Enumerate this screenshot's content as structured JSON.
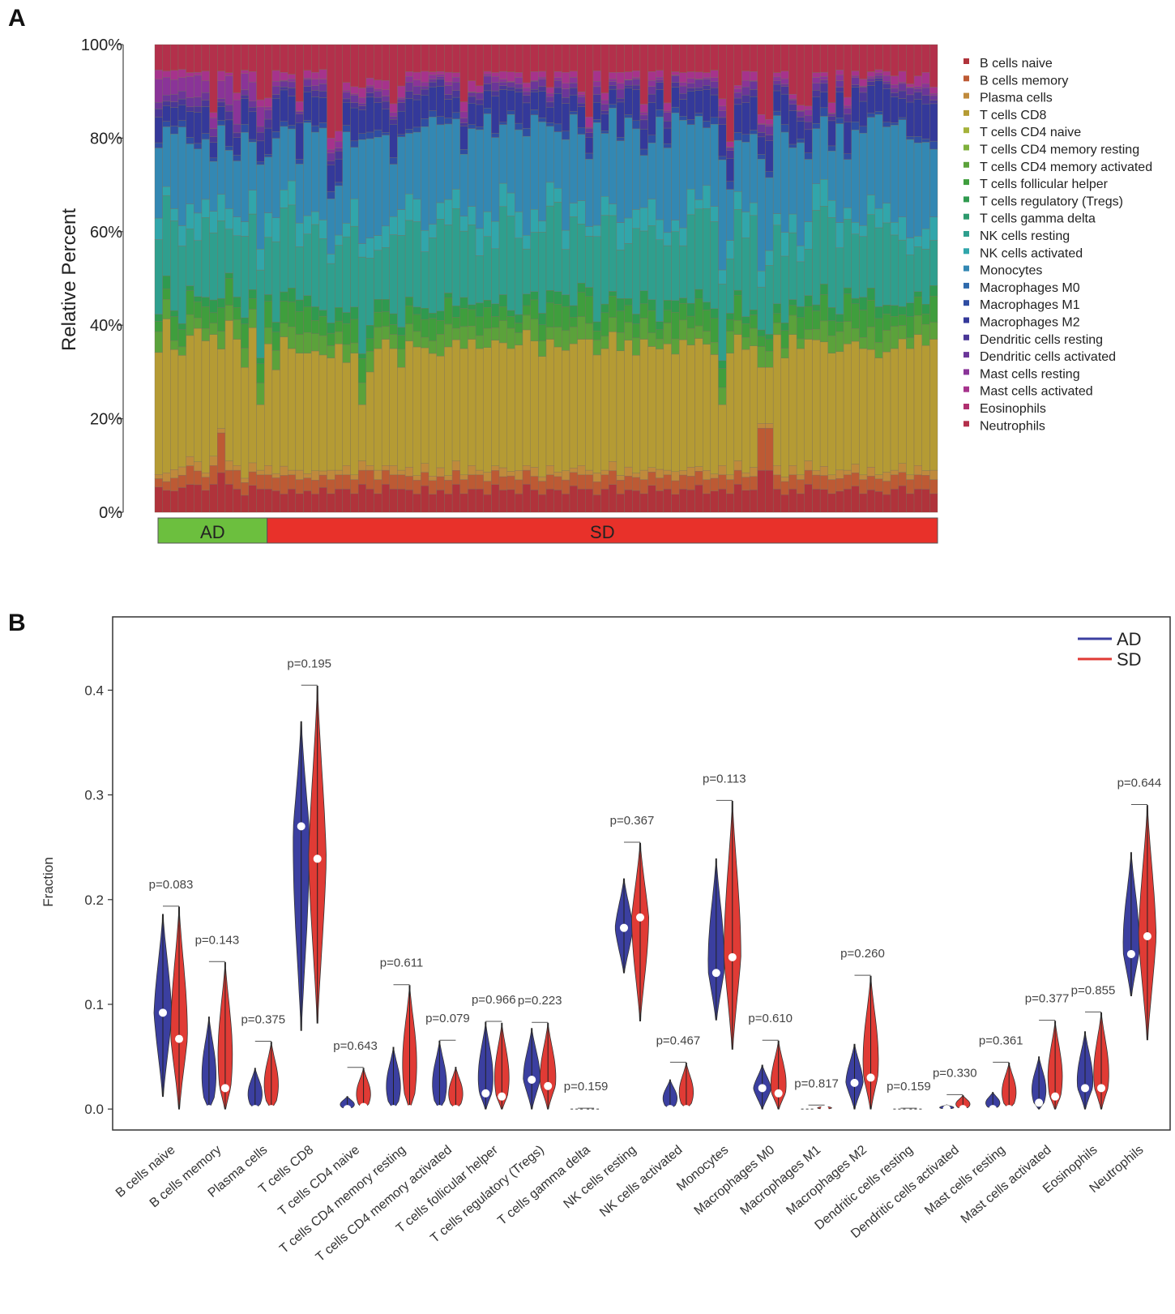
{
  "chart_data": [
    {
      "panel_label": "A",
      "type": "bar",
      "stacked": true,
      "ylabel": "Relative Percent",
      "ytick_labels": [
        "0%",
        "20%",
        "40%",
        "60%",
        "80%",
        "100%"
      ],
      "ylim": [
        0,
        100
      ],
      "n_samples": 100,
      "groups": [
        {
          "name": "AD",
          "count": 14,
          "color": "#6cbf3e"
        },
        {
          "name": "SD",
          "count": 86,
          "color": "#e8312a"
        }
      ],
      "legend": [
        {
          "name": "B cells naive",
          "color": "#b0333b"
        },
        {
          "name": "B cells memory",
          "color": "#bd5a34"
        },
        {
          "name": "Plasma cells",
          "color": "#c08a3c"
        },
        {
          "name": "T cells CD8",
          "color": "#b59b34"
        },
        {
          "name": "T cells CD4 naive",
          "color": "#a5b23a"
        },
        {
          "name": "T cells CD4 memory resting",
          "color": "#7fb03c"
        },
        {
          "name": "T cells CD4 memory activated",
          "color": "#5ba23b"
        },
        {
          "name": "T cells follicular helper",
          "color": "#3f9e3d"
        },
        {
          "name": "T cells regulatory (Tregs)",
          "color": "#2f9a4f"
        },
        {
          "name": "T cells gamma delta",
          "color": "#2e9a6d"
        },
        {
          "name": "NK cells resting",
          "color": "#2f9f8e"
        },
        {
          "name": "NK cells activated",
          "color": "#31a6ab"
        },
        {
          "name": "Monocytes",
          "color": "#3388b3"
        },
        {
          "name": "Macrophages M0",
          "color": "#2f6aac"
        },
        {
          "name": "Macrophages M1",
          "color": "#2f4da2"
        },
        {
          "name": "Macrophages M2",
          "color": "#34399a"
        },
        {
          "name": "Dendritic cells resting",
          "color": "#4a3797"
        },
        {
          "name": "Dendritic cells activated",
          "color": "#6b3699"
        },
        {
          "name": "Mast cells resting",
          "color": "#8a3498"
        },
        {
          "name": "Mast cells activated",
          "color": "#a6338c"
        },
        {
          "name": "Eosinophils",
          "color": "#b0306f"
        },
        {
          "name": "Neutrophils",
          "color": "#b3304b"
        }
      ],
      "series_summary": [
        {
          "name": "B cells naive",
          "values": [
            6,
            5,
            5,
            6,
            6,
            6,
            5,
            6,
            9,
            6,
            5,
            4,
            6,
            5,
            5,
            5,
            4,
            5,
            4,
            5,
            4,
            6,
            4,
            5,
            5,
            4,
            6,
            5,
            4,
            6,
            5,
            5,
            5,
            4,
            6,
            4,
            5,
            4,
            6,
            4,
            5,
            5,
            4,
            6,
            5,
            5,
            4,
            6,
            5,
            4,
            5,
            5,
            4,
            6,
            5,
            5,
            4,
            5,
            6,
            4,
            5,
            5,
            4,
            6,
            5,
            5,
            4,
            5,
            5,
            6,
            4,
            5,
            5,
            4,
            6,
            5,
            5,
            9,
            9,
            5,
            4,
            5,
            4,
            6,
            5,
            5,
            4,
            5,
            5,
            6,
            4,
            5,
            5,
            4,
            5,
            6,
            4,
            5,
            5,
            4
          ]
        },
        {
          "name": "B cells memory",
          "values": [
            2,
            2,
            3,
            3,
            4,
            3,
            3,
            4,
            9,
            3,
            4,
            3,
            3,
            3,
            3,
            3,
            4,
            3,
            3,
            3,
            3,
            3,
            3,
            3,
            3,
            3,
            3,
            4,
            3,
            3,
            3,
            3,
            3,
            3,
            3,
            3,
            3,
            3,
            3,
            3,
            3,
            3,
            3,
            3,
            3,
            3,
            3,
            3,
            3,
            3,
            3,
            3,
            3,
            3,
            3,
            3,
            3,
            3,
            3,
            3,
            3,
            3,
            3,
            3,
            3,
            3,
            3,
            3,
            3,
            3,
            3,
            3,
            3,
            3,
            3,
            3,
            3,
            9,
            9,
            3,
            3,
            3,
            3,
            3,
            3,
            3,
            3,
            3,
            3,
            3,
            3,
            3,
            3,
            3,
            3,
            3,
            3,
            3,
            3,
            3
          ]
        },
        {
          "name": "Plasma cells",
          "values": [
            1,
            2,
            2,
            2,
            2,
            2,
            1,
            2,
            1,
            2,
            1,
            1,
            2,
            1,
            2,
            1,
            2,
            1,
            2,
            1,
            2,
            1,
            2,
            1,
            2,
            1,
            2,
            1,
            2,
            1,
            2,
            1,
            2,
            1,
            2,
            1,
            2,
            1,
            2,
            1,
            2,
            1,
            2,
            1,
            2,
            1,
            2,
            1,
            2,
            1,
            2,
            1,
            2,
            1,
            2,
            1,
            2,
            1,
            2,
            1,
            2,
            1,
            2,
            1,
            2,
            1,
            2,
            1,
            2,
            1,
            2,
            1,
            2,
            1,
            2,
            1,
            2,
            1,
            1,
            2,
            1,
            2,
            1,
            2,
            1,
            2,
            1,
            2,
            1,
            2,
            1,
            2,
            1,
            2,
            1,
            2,
            1,
            2,
            1,
            2
          ]
        },
        {
          "name": "T cells CD8",
          "values": [
            29,
            35,
            28,
            27,
            26,
            29,
            30,
            26,
            18,
            30,
            27,
            26,
            30,
            14,
            26,
            24,
            28,
            26,
            25,
            28,
            26,
            28,
            24,
            27,
            22,
            26,
            12,
            20,
            26,
            27,
            25,
            22,
            28,
            28,
            26,
            27,
            25,
            28,
            26,
            27,
            27,
            26,
            28,
            27,
            28,
            27,
            27,
            29,
            28,
            27,
            27,
            28,
            26,
            28,
            27,
            28,
            27,
            26,
            28,
            27,
            28,
            27,
            28,
            27,
            28,
            27,
            26,
            28,
            27,
            28,
            27,
            28,
            13,
            26,
            27,
            28,
            27,
            12,
            12,
            28,
            27,
            28,
            27,
            26,
            28,
            27,
            26,
            28,
            27,
            28,
            27,
            26,
            28,
            27,
            26,
            28,
            27,
            28,
            27,
            28
          ]
        }
      ]
    },
    {
      "panel_label": "B",
      "type": "violin",
      "ylabel": "Fraction",
      "ylim": [
        -0.02,
        0.47
      ],
      "yticks": [
        0.0,
        0.1,
        0.2,
        0.3,
        0.4
      ],
      "ytick_labels": [
        "0.0",
        "0.1",
        "0.2",
        "0.3",
        "0.4"
      ],
      "legend": [
        {
          "name": "AD",
          "color": "#3b3fa0"
        },
        {
          "name": "SD",
          "color": "#e03b35"
        }
      ],
      "categories": [
        "B cells naive",
        "B cells memory",
        "Plasma cells",
        "T cells CD8",
        "T cells CD4 naive",
        "T cells CD4 memory resting",
        "T cells CD4 memory activated",
        "T cells follicular helper",
        "T cells regulatory (Tregs)",
        "T cells gamma delta",
        "NK cells resting",
        "NK cells activated",
        "Monocytes",
        "Macrophages M0",
        "Macrophages M1",
        "Macrophages M2",
        "Dendritic cells resting",
        "Dendritic cells activated",
        "Mast cells resting",
        "Mast cells activated",
        "Eosinophils",
        "Neutrophils"
      ],
      "p_values": [
        "p=0.083",
        "p=0.143",
        "p=0.375",
        "p=0.195",
        "p=0.643",
        "p=0.611",
        "p=0.079",
        "p=0.966",
        "p=0.223",
        "p=0.159",
        "p=0.367",
        "p=0.467",
        "p=0.113",
        "p=0.610",
        "p=0.817",
        "p=0.260",
        "p=0.159",
        "p=0.330",
        "p=0.361",
        "p=0.377",
        "p=0.855",
        "p=0.644"
      ],
      "series": [
        {
          "name": "AD",
          "median": [
            0.092,
            0.0,
            0.0,
            0.27,
            0.0,
            0.0,
            0.0,
            0.015,
            0.028,
            0.0,
            0.173,
            0.0,
            0.13,
            0.02,
            0.0,
            0.025,
            0.0,
            0.0,
            0.0,
            0.006,
            0.02,
            0.148
          ],
          "min": [
            0.012,
            0.0,
            0.0,
            0.075,
            0.0,
            0.0,
            0.0,
            0.0,
            0.0,
            0.0,
            0.13,
            0.0,
            0.085,
            0.0,
            0.0,
            0.0,
            0.0,
            0.0,
            0.0,
            0.0,
            0.0,
            0.108
          ],
          "max": [
            0.186,
            0.088,
            0.039,
            0.37,
            0.012,
            0.059,
            0.065,
            0.083,
            0.077,
            0.0,
            0.22,
            0.028,
            0.239,
            0.042,
            0.0,
            0.062,
            0.0,
            0.004,
            0.016,
            0.05,
            0.074,
            0.245
          ]
        },
        {
          "name": "SD",
          "median": [
            0.067,
            0.02,
            0.0,
            0.239,
            0.002,
            0.0,
            0.0,
            0.012,
            0.022,
            0.0,
            0.183,
            0.0,
            0.145,
            0.015,
            0.0,
            0.03,
            0.0,
            0.0,
            0.0,
            0.012,
            0.02,
            0.165
          ],
          "min": [
            0.0,
            0.0,
            0.0,
            0.082,
            0.0,
            0.0,
            0.0,
            0.0,
            0.0,
            0.0,
            0.084,
            0.0,
            0.057,
            0.0,
            0.0,
            0.0,
            0.0,
            0.0,
            0.0,
            0.0,
            0.0,
            0.066
          ],
          "max": [
            0.193,
            0.14,
            0.064,
            0.404,
            0.039,
            0.118,
            0.04,
            0.082,
            0.082,
            0.0,
            0.254,
            0.044,
            0.294,
            0.065,
            0.003,
            0.127,
            0.0,
            0.013,
            0.044,
            0.084,
            0.092,
            0.29
          ]
        }
      ]
    }
  ]
}
